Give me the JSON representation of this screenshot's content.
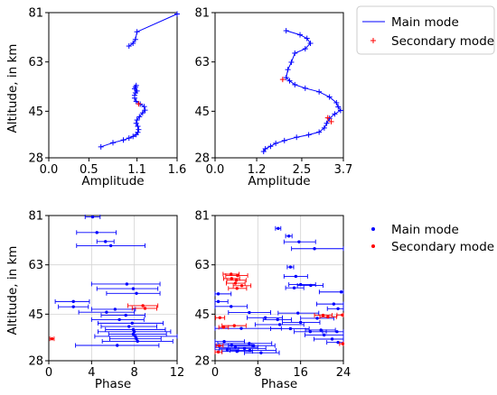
{
  "ylabel_text": "Altitude, in km",
  "legend_top": {
    "main": "Main mode",
    "secondary": "Secondary mode"
  },
  "legend_bottom": {
    "main": "Main mode",
    "secondary": "Secondary mode"
  },
  "colors": {
    "main": "#0000ff",
    "secondary": "#ff0000",
    "grid": "#d3d3d3",
    "axis": "#000000"
  },
  "chart_data": [
    {
      "type": "line",
      "title": "",
      "xlabel": "Amplitude",
      "ylabel": "Altitude, in km",
      "xlim": [
        0,
        1.6
      ],
      "ylim": [
        28,
        81
      ],
      "xticks": [
        "0.0",
        "0.5",
        "1.1",
        "1.6"
      ],
      "xtick_values": [
        0,
        0.5,
        1.1,
        1.6
      ],
      "yticks": [
        "28",
        "45",
        "63",
        "81"
      ],
      "ytick_values": [
        28,
        45,
        63,
        81
      ],
      "grid": false,
      "series": [
        {
          "name": "Main mode",
          "marker": "+",
          "x": [
            0.65,
            0.8,
            0.93,
            1.0,
            1.05,
            1.09,
            1.11,
            1.12,
            1.11,
            1.09,
            1.1,
            1.13,
            1.17,
            1.2,
            1.19,
            1.14,
            1.09,
            1.07,
            1.07,
            1.08,
            1.1,
            1.07,
            1.08,
            1.09,
            null,
            1.0,
            1.05,
            1.08,
            1.1,
            1.6
          ],
          "y": [
            32,
            33.5,
            34.5,
            35.2,
            35.8,
            36.5,
            37.3,
            38.3,
            39.5,
            40.6,
            41.8,
            43,
            44.4,
            45.4,
            46.7,
            47.6,
            48.6,
            49.8,
            50.8,
            51.7,
            52.4,
            53.2,
            53.8,
            54.4,
            null,
            68.8,
            69.8,
            71.2,
            74,
            80.5
          ]
        },
        {
          "name": "Secondary mode",
          "marker": "+",
          "x": [
            1.12
          ],
          "y": [
            47.7
          ]
        }
      ]
    },
    {
      "type": "line",
      "title": "",
      "xlabel": "Amplitude",
      "ylabel": "",
      "xlim": [
        0,
        3.7
      ],
      "ylim": [
        28,
        81
      ],
      "xticks": [
        "0.0",
        "1.2",
        "2.5",
        "3.7"
      ],
      "xtick_values": [
        0,
        1.2,
        2.5,
        3.7
      ],
      "yticks": [
        "28",
        "45",
        "63",
        "81"
      ],
      "ytick_values": [
        28,
        45,
        63,
        81
      ],
      "grid": false,
      "series": [
        {
          "name": "Main mode",
          "marker": "+",
          "x": [
            1.4,
            1.45,
            1.6,
            1.75,
            2.0,
            2.35,
            2.7,
            3.0,
            3.15,
            3.22,
            3.3,
            3.45,
            3.62,
            3.55,
            3.5,
            3.3,
            3.0,
            2.6,
            2.3,
            2.15,
            2.05,
            2.1,
            2.2,
            2.3,
            2.6,
            2.75,
            2.65,
            2.45,
            2.05
          ],
          "y": [
            30.3,
            31.3,
            32.2,
            33.3,
            34.3,
            35.5,
            36.4,
            37.4,
            38.9,
            40.6,
            42.4,
            44,
            45.3,
            46.6,
            48.1,
            50.2,
            52.1,
            53.4,
            54.7,
            56.1,
            57.3,
            60.2,
            62.9,
            66.2,
            67.8,
            69.8,
            71.6,
            72.9,
            74.4
          ]
        },
        {
          "name": "Secondary mode",
          "marker": "+",
          "x": [
            1.95,
            3.25,
            3.35
          ],
          "y": [
            56.6,
            42.6,
            41.2
          ]
        }
      ]
    },
    {
      "type": "scatter",
      "title": "",
      "xlabel": "Phase",
      "ylabel": "Altitude, in km",
      "xlim": [
        0,
        12
      ],
      "ylim": [
        28,
        81
      ],
      "xticks": [
        "0",
        "4",
        "8",
        "12"
      ],
      "xtick_values": [
        0,
        4,
        8,
        12
      ],
      "yticks": [
        "28",
        "45",
        "63",
        "81"
      ],
      "ytick_values": [
        28,
        45,
        63,
        81
      ],
      "grid": true,
      "errorbars": "horizontal",
      "series": [
        {
          "name": "Main mode",
          "points": [
            [
              4.1,
              80.5,
              3.4,
              4.8
            ],
            [
              4.5,
              74.8,
              2.6,
              6.3
            ],
            [
              5.3,
              71.5,
              4.5,
              6.1
            ],
            [
              5.8,
              70.0,
              2.6,
              9.0
            ],
            [
              7.3,
              56.0,
              4.0,
              10.4
            ],
            [
              7.9,
              54.3,
              4.5,
              10.2
            ],
            [
              8.2,
              52.6,
              5.4,
              10.4
            ],
            [
              2.3,
              49.6,
              0.6,
              3.8
            ],
            [
              2.3,
              47.7,
              0.9,
              3.7
            ],
            [
              6.2,
              46.8,
              4.0,
              8.1
            ],
            [
              5.4,
              45.7,
              2.8,
              8.0
            ],
            [
              7.2,
              44.6,
              4.9,
              9.0
            ],
            [
              6.6,
              43.0,
              4.0,
              8.9
            ],
            [
              7.8,
              41.7,
              4.6,
              10.7
            ],
            [
              7.5,
              40.5,
              4.9,
              10.1
            ],
            [
              7.9,
              39.4,
              5.3,
              10.9
            ],
            [
              8.0,
              38.6,
              4.6,
              11.4
            ],
            [
              7.9,
              37.7,
              5.6,
              11.0
            ],
            [
              8.1,
              36.9,
              4.3,
              12.0
            ],
            [
              8.2,
              36.0,
              5.7,
              10.5
            ],
            [
              8.3,
              35.1,
              5.0,
              11.6
            ],
            [
              6.4,
              33.6,
              2.5,
              10.3
            ]
          ]
        },
        {
          "name": "Secondary mode",
          "points": [
            [
              8.8,
              48.1,
              7.4,
              10.2
            ],
            [
              9.0,
              47.1,
              7.8,
              10.1
            ],
            [
              0.3,
              36.0,
              0.1,
              0.5
            ]
          ]
        }
      ]
    },
    {
      "type": "scatter",
      "title": "",
      "xlabel": "Phase",
      "ylabel": "",
      "xlim": [
        0,
        24
      ],
      "ylim": [
        28,
        81
      ],
      "xticks": [
        "0",
        "8",
        "16",
        "24"
      ],
      "xtick_values": [
        0,
        8,
        16,
        24
      ],
      "yticks": [
        "28",
        "45",
        "63",
        "81"
      ],
      "ytick_values": [
        28,
        45,
        63,
        81
      ],
      "grid": true,
      "errorbars": "horizontal",
      "series": [
        {
          "name": "Main mode",
          "points": [
            [
              11.8,
              76.3,
              11.3,
              12.3
            ],
            [
              13.8,
              73.5,
              13.2,
              14.4
            ],
            [
              15.7,
              71.4,
              12.9,
              18.8
            ],
            [
              18.6,
              68.9,
              14.3,
              24.0
            ],
            [
              14.1,
              62.2,
              13.5,
              14.7
            ],
            [
              15.1,
              58.8,
              12.9,
              17.3
            ],
            [
              16.0,
              55.8,
              13.8,
              18.8
            ],
            [
              17.9,
              55.5,
              15.4,
              20.2
            ],
            [
              14.8,
              54.6,
              13.2,
              16.6
            ],
            [
              23.6,
              53.1,
              19.5,
              24.0
            ],
            [
              0.6,
              52.4,
              0.0,
              3.0
            ],
            [
              0.6,
              49.6,
              0.0,
              2.4
            ],
            [
              22.2,
              48.7,
              19.0,
              24.0
            ],
            [
              3.0,
              47.8,
              0.0,
              6.0
            ],
            [
              23.0,
              47.0,
              21.0,
              24.0
            ],
            [
              6.4,
              45.6,
              2.5,
              10.4
            ],
            [
              15.5,
              45.4,
              11.8,
              19.4
            ],
            [
              9.4,
              43.7,
              6.0,
              12.6
            ],
            [
              19.1,
              43.5,
              16.0,
              22.2
            ],
            [
              11.7,
              43.0,
              9.0,
              14.3
            ],
            [
              16.0,
              42.0,
              12.6,
              19.6
            ],
            [
              12.1,
              41.2,
              7.5,
              16.6
            ],
            [
              4.9,
              39.8,
              0.0,
              12.4
            ],
            [
              14.1,
              39.7,
              10.4,
              17.6
            ],
            [
              19.8,
              39.2,
              16.9,
              22.5
            ],
            [
              17.8,
              38.6,
              14.8,
              20.8
            ],
            [
              22.8,
              38.6,
              20.1,
              24.0
            ],
            [
              20.4,
              37.4,
              16.8,
              24.0
            ],
            [
              21.9,
              35.9,
              18.5,
              24.0
            ],
            [
              1.7,
              35.0,
              0.0,
              5.5
            ],
            [
              23.0,
              34.7,
              20.9,
              24.0
            ],
            [
              6.4,
              34.3,
              0.5,
              10.6
            ],
            [
              3.1,
              33.7,
              0.0,
              6.9
            ],
            [
              7.2,
              33.5,
              2.5,
              11.2
            ],
            [
              3.8,
              32.9,
              0.0,
              8.0
            ],
            [
              5.5,
              32.5,
              0.8,
              9.5
            ],
            [
              2.3,
              32.0,
              0.0,
              4.4
            ],
            [
              6.5,
              31.8,
              2.8,
              11.4
            ],
            [
              4.1,
              31.4,
              1.3,
              7.0
            ],
            [
              8.6,
              30.9,
              5.5,
              12.0
            ]
          ]
        },
        {
          "name": "Secondary mode",
          "points": [
            [
              3.0,
              59.6,
              1.5,
              4.5
            ],
            [
              4.2,
              59.1,
              2.0,
              6.1
            ],
            [
              3.1,
              58.0,
              1.6,
              4.6
            ],
            [
              4.0,
              57.4,
              2.2,
              5.8
            ],
            [
              3.8,
              56.3,
              2.1,
              5.6
            ],
            [
              5.0,
              55.4,
              3.4,
              6.7
            ],
            [
              4.1,
              54.4,
              2.5,
              5.9
            ],
            [
              20.2,
              44.6,
              18.6,
              21.9
            ],
            [
              21.1,
              44.0,
              19.6,
              22.7
            ],
            [
              23.8,
              44.7,
              22.8,
              24.0
            ],
            [
              0.9,
              43.7,
              0.1,
              1.8
            ],
            [
              3.6,
              40.8,
              1.3,
              5.8
            ],
            [
              1.6,
              40.2,
              0.7,
              2.5
            ],
            [
              23.9,
              34.2,
              23.3,
              24.0
            ],
            [
              0.8,
              33.5,
              0.2,
              1.5
            ],
            [
              0.6,
              31.2,
              0.0,
              1.3
            ]
          ]
        }
      ]
    }
  ]
}
